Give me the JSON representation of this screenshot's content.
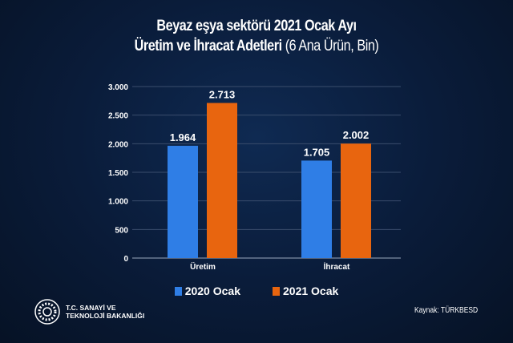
{
  "title": {
    "line1": "Beyaz eşya sektörü 2021 Ocak Ayı",
    "line2_bold": "Üretim ve İhracat Adetleri",
    "line2_light": "(6 Ana Ürün, Bin)"
  },
  "chart_data": {
    "type": "bar",
    "categories": [
      "Üretim",
      "İhracat"
    ],
    "series": [
      {
        "name": "2020 Ocak",
        "values": [
          1964,
          1705
        ],
        "labels": [
          "1.964",
          "1.705"
        ],
        "color": "#2f7ee6"
      },
      {
        "name": "2021 Ocak",
        "values": [
          2713,
          2002
        ],
        "labels": [
          "2.713",
          "2.002"
        ],
        "color": "#e8650f"
      }
    ],
    "ylim": [
      0,
      3000
    ],
    "yticks": [
      0,
      500,
      1000,
      1500,
      2000,
      2500,
      3000
    ],
    "ytick_labels": [
      "0",
      "500",
      "1.000",
      "1.500",
      "2.000",
      "2.500",
      "3.000"
    ],
    "grid": true,
    "legend": "bottom"
  },
  "footer": {
    "logo_line1": "T.C. SANAYİ VE",
    "logo_line2": "TEKNOLOJİ BAKANLIĞI",
    "source": "Kaynak:  TÜRKBESD"
  }
}
